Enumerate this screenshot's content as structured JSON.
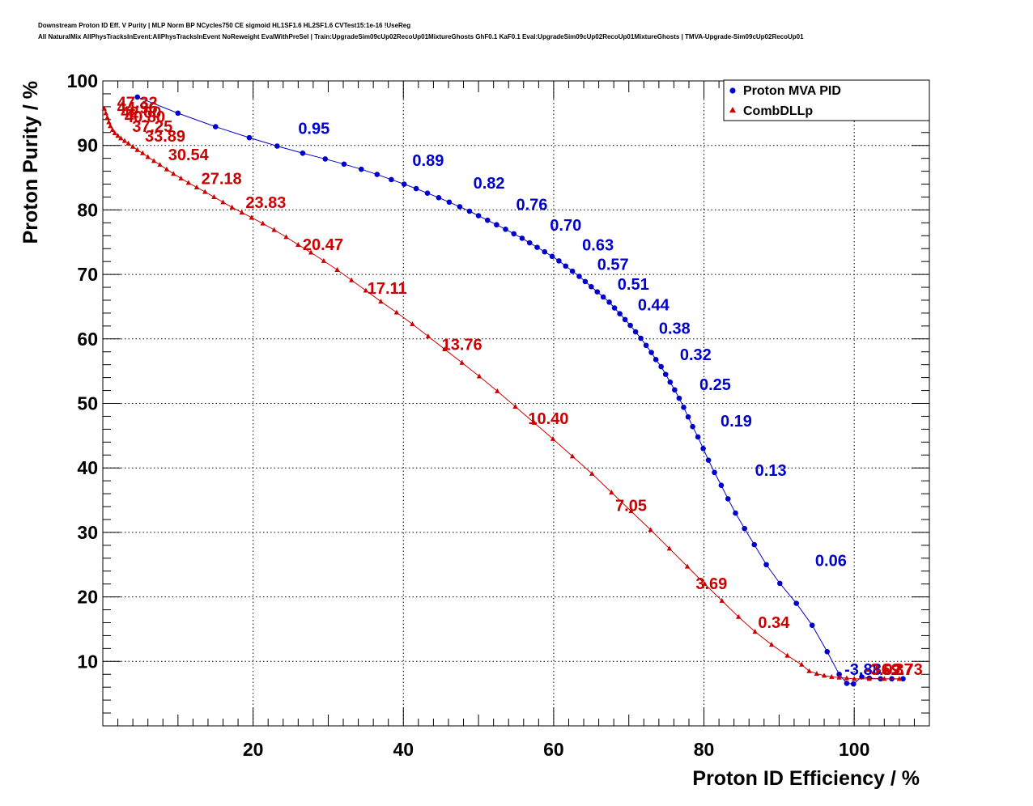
{
  "chart_data": {
    "type": "scatter",
    "title_line1": "Downstream Proton ID Eff. V Purity | MLP Norm BP NCycles750 CE sigmoid HL1SF1.6 HL2SF1.6 CVTest15:1e-16 !UseReg",
    "title_line2": "All NaturalMix AllPhysTracksInEvent:AllPhysTracksInEvent NoReweight EvalWithPreSel | Train:UpgradeSim09cUp02RecoUp01MixtureGhosts GhF0.1 KaF0.1 Eval:UpgradeSim09cUp02RecoUp01MixtureGhosts | TMVA-Upgrade-Sim09cUp02RecoUp01",
    "xlabel": "Proton ID Efficiency / %",
    "ylabel": "Proton Purity / %",
    "xlim": [
      0,
      110
    ],
    "ylim": [
      0,
      100
    ],
    "xticks": [
      20,
      40,
      60,
      80,
      100
    ],
    "yticks": [
      10,
      20,
      30,
      40,
      50,
      60,
      70,
      80,
      90,
      100
    ],
    "grid": true,
    "legend_position": "top-right",
    "colors": {
      "mva": "#0000cc",
      "dll": "#cc0000"
    },
    "series": [
      {
        "name": "Proton MVA PID",
        "marker": "circle",
        "x": [
          4.6,
          10.0,
          15.0,
          19.5,
          23.2,
          26.6,
          29.6,
          32.1,
          34.4,
          36.5,
          38.4,
          40.1,
          41.7,
          43.2,
          44.7,
          46.1,
          47.5,
          48.8,
          50.0,
          51.2,
          52.4,
          53.6,
          54.7,
          55.8,
          56.8,
          57.8,
          58.8,
          59.8,
          60.7,
          61.6,
          62.5,
          63.4,
          64.2,
          65.0,
          65.8,
          66.6,
          67.4,
          68.1,
          68.8,
          69.5,
          70.2,
          70.9,
          71.6,
          72.3,
          73.0,
          73.6,
          74.3,
          74.9,
          75.5,
          76.1,
          76.7,
          77.3,
          77.9,
          78.5,
          79.2,
          79.9,
          80.6,
          81.4,
          82.3,
          83.2,
          84.2,
          85.4,
          86.7,
          88.3,
          90.1,
          92.3,
          94.4,
          96.4,
          98.0,
          99.0,
          99.9,
          101.0,
          102.0,
          103.5,
          105.0,
          106.5
        ],
        "y": [
          97.5,
          95.0,
          92.9,
          91.2,
          89.9,
          88.8,
          87.9,
          87.1,
          86.3,
          85.5,
          84.7,
          84.0,
          83.3,
          82.6,
          81.9,
          81.2,
          80.5,
          79.8,
          79.1,
          78.4,
          77.7,
          77.0,
          76.3,
          75.6,
          74.9,
          74.2,
          73.5,
          72.8,
          72.1,
          71.3,
          70.5,
          69.7,
          68.9,
          68.1,
          67.3,
          66.5,
          65.7,
          64.8,
          63.9,
          63.0,
          62.1,
          61.1,
          60.1,
          59.0,
          57.9,
          56.8,
          55.7,
          54.5,
          53.3,
          52.1,
          50.8,
          49.4,
          47.9,
          46.4,
          44.8,
          43.0,
          41.2,
          39.3,
          37.3,
          35.2,
          33.0,
          30.6,
          28.1,
          25.0,
          22.1,
          19.0,
          15.6,
          11.5,
          8.0,
          6.6,
          6.5,
          7.6,
          7.4,
          7.3,
          7.3,
          7.3
        ],
        "labels": [
          {
            "text": "0.95",
            "x": 26.0,
            "y": 91.8
          },
          {
            "text": "0.89",
            "x": 41.2,
            "y": 86.8
          },
          {
            "text": "0.82",
            "x": 49.3,
            "y": 83.3
          },
          {
            "text": "0.76",
            "x": 55.0,
            "y": 80.0
          },
          {
            "text": "0.70",
            "x": 59.5,
            "y": 76.8
          },
          {
            "text": "0.63",
            "x": 63.8,
            "y": 73.7
          },
          {
            "text": "0.57",
            "x": 65.8,
            "y": 70.7
          },
          {
            "text": "0.51",
            "x": 68.5,
            "y": 67.6
          },
          {
            "text": "0.44",
            "x": 71.2,
            "y": 64.4
          },
          {
            "text": "0.38",
            "x": 74.0,
            "y": 60.8
          },
          {
            "text": "0.32",
            "x": 76.8,
            "y": 56.7
          },
          {
            "text": "0.25",
            "x": 79.4,
            "y": 52.1
          },
          {
            "text": "0.19",
            "x": 82.2,
            "y": 46.4
          },
          {
            "text": "0.13",
            "x": 86.8,
            "y": 38.8
          },
          {
            "text": "0.06",
            "x": 94.8,
            "y": 24.8
          },
          {
            "text": "-3.88",
            "x": 98.7,
            "y": 7.9
          }
        ]
      },
      {
        "name": "CombDLLp",
        "marker": "triangle",
        "x": [
          0.2,
          0.4,
          0.6,
          0.8,
          1.0,
          1.3,
          1.6,
          2.0,
          2.4,
          2.9,
          3.4,
          4.0,
          4.6,
          5.3,
          6.0,
          6.8,
          7.6,
          8.5,
          9.4,
          10.4,
          11.4,
          12.5,
          13.6,
          14.8,
          16.0,
          17.2,
          18.5,
          19.8,
          21.3,
          22.8,
          24.4,
          26.0,
          27.7,
          29.4,
          31.2,
          33.1,
          35.0,
          37.0,
          39.1,
          41.2,
          43.3,
          45.5,
          47.8,
          50.1,
          52.5,
          54.9,
          57.4,
          59.9,
          62.5,
          65.1,
          67.7,
          70.3,
          72.9,
          75.4,
          77.8,
          80.1,
          82.4,
          84.6,
          86.8,
          89.0,
          91.1,
          93.0,
          94.0,
          95.0,
          96.0,
          97.0,
          98.0,
          99.0,
          100.0,
          102.0,
          104.0,
          106.0
        ],
        "y": [
          95.7,
          95.0,
          94.3,
          93.6,
          93.0,
          92.4,
          91.9,
          91.5,
          91.1,
          90.7,
          90.3,
          89.8,
          89.3,
          88.8,
          88.2,
          87.6,
          87.0,
          86.3,
          85.6,
          84.9,
          84.2,
          83.5,
          82.8,
          82.0,
          81.2,
          80.4,
          79.6,
          78.8,
          77.9,
          76.9,
          75.8,
          74.6,
          73.4,
          72.1,
          70.7,
          69.1,
          67.5,
          65.8,
          64.1,
          62.3,
          60.4,
          58.4,
          56.3,
          54.2,
          51.9,
          49.5,
          47.0,
          44.5,
          41.8,
          39.1,
          36.2,
          33.3,
          30.4,
          27.5,
          24.7,
          22.0,
          19.4,
          16.9,
          14.6,
          12.6,
          10.9,
          9.5,
          8.5,
          8.1,
          7.8,
          7.6,
          7.5,
          7.4,
          7.3,
          7.3,
          7.3,
          7.3
        ],
        "labels": [
          {
            "text": "47.32",
            "x": 1.9,
            "y": 95.8
          },
          {
            "text": "44.96",
            "x": 1.9,
            "y": 95.0
          },
          {
            "text": "42.60",
            "x": 2.4,
            "y": 94.3
          },
          {
            "text": "40.80",
            "x": 2.9,
            "y": 93.6
          },
          {
            "text": "37.25",
            "x": 3.9,
            "y": 92.1
          },
          {
            "text": "33.89",
            "x": 5.6,
            "y": 90.6
          },
          {
            "text": "30.54",
            "x": 8.7,
            "y": 87.7
          },
          {
            "text": "27.18",
            "x": 13.1,
            "y": 84.0
          },
          {
            "text": "23.83",
            "x": 19.0,
            "y": 80.3
          },
          {
            "text": "20.47",
            "x": 26.6,
            "y": 73.8
          },
          {
            "text": "17.11",
            "x": 35.2,
            "y": 67.0
          },
          {
            "text": "13.76",
            "x": 45.1,
            "y": 58.3
          },
          {
            "text": "10.40",
            "x": 56.6,
            "y": 46.8
          },
          {
            "text": "7.05",
            "x": 68.2,
            "y": 33.3
          },
          {
            "text": "3.69",
            "x": 78.9,
            "y": 21.2
          },
          {
            "text": "0.34",
            "x": 87.2,
            "y": 15.2
          },
          {
            "text": "-3.02",
            "x": 101.4,
            "y": 7.9
          },
          {
            "text": "-6.37",
            "x": 102.9,
            "y": 7.9
          },
          {
            "text": "-9.73",
            "x": 104.2,
            "y": 7.9
          }
        ]
      }
    ]
  }
}
